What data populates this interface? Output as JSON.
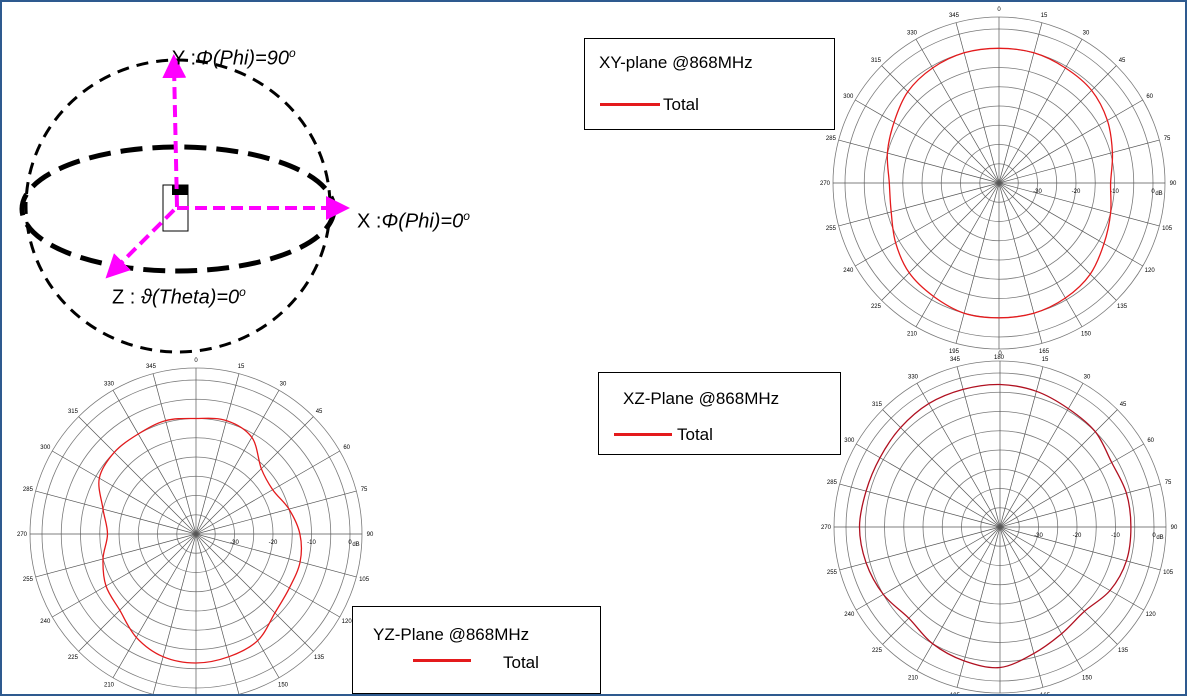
{
  "axes_diagram": {
    "y_prefix": "Y :",
    "y_text": "Φ(Phi)=90",
    "y_sup": "o",
    "x_prefix": "X :",
    "x_text": "Φ(Phi)=0",
    "x_sup": "o",
    "z_prefix": "Z : ",
    "z_text": "ϑ(Theta)=0",
    "z_sup": "o",
    "colors": {
      "axis_arrow": "#ff00ff",
      "ellipse": "#000000"
    }
  },
  "chart_data": [
    {
      "type": "polar",
      "legend_title": "XY-plane @868MHz",
      "series": [
        {
          "name": "Total",
          "color": "#e41a1c",
          "angles_deg": [
            0,
            15,
            30,
            45,
            60,
            75,
            90,
            105,
            120,
            135,
            150,
            165,
            180,
            195,
            210,
            225,
            240,
            255,
            270,
            285,
            300,
            315,
            330,
            345
          ],
          "values_db": [
            -5,
            -5,
            -5.5,
            -6,
            -7.5,
            -9.5,
            -11,
            -10,
            -8.5,
            -6.5,
            -5.5,
            -5,
            -5,
            -5,
            -6,
            -7,
            -9,
            -11,
            -11.5,
            -10,
            -8.5,
            -6.5,
            -5.5,
            -5
          ]
        }
      ],
      "angle_tick_labels": [
        "0",
        "15",
        "30",
        "45",
        "60",
        "75",
        "90",
        "105",
        "120",
        "135",
        "150",
        "165",
        "180",
        "195",
        "210",
        "225",
        "240",
        "255",
        "270",
        "285",
        "300",
        "315",
        "330",
        "345"
      ],
      "radial_tick_labels": [
        "-30",
        "-20",
        "-10",
        "0"
      ],
      "radial_unit": "dB",
      "r_range_db": [
        -40,
        0
      ]
    },
    {
      "type": "polar",
      "legend_title": "YZ-Plane @868MHz",
      "series": [
        {
          "name": "Total",
          "color": "#e41a1c",
          "angles_deg": [
            0,
            15,
            30,
            45,
            60,
            75,
            90,
            105,
            120,
            135,
            150,
            165,
            180,
            195,
            210,
            225,
            240,
            255,
            270,
            285,
            300,
            315,
            330,
            345
          ],
          "values_db": [
            -10,
            -9.5,
            -11,
            -16,
            -17,
            -15,
            -13,
            -12,
            -12,
            -11,
            -8,
            -7,
            -6.5,
            -7,
            -9,
            -12,
            -13,
            -15,
            -17,
            -15,
            -11,
            -10,
            -10,
            -9.5
          ]
        }
      ],
      "angle_tick_labels": [
        "0",
        "15",
        "30",
        "45",
        "60",
        "75",
        "90",
        "105",
        "120",
        "135",
        "150",
        "165",
        "180",
        "195",
        "210",
        "225",
        "240",
        "255",
        "270",
        "285",
        "300",
        "315",
        "330",
        "345"
      ],
      "radial_tick_labels": [
        "-30",
        "-20",
        "-10",
        "0"
      ],
      "radial_unit": "dB",
      "r_range_db": [
        -40,
        0
      ]
    },
    {
      "type": "polar",
      "legend_title": "XZ-Plane @868MHz",
      "series": [
        {
          "name": "Total",
          "color": "#b01020",
          "angles_deg": [
            0,
            15,
            30,
            45,
            60,
            75,
            90,
            105,
            120,
            135,
            150,
            165,
            180,
            195,
            210,
            225,
            240,
            255,
            270,
            285,
            300,
            315,
            330,
            345
          ],
          "values_db": [
            -3,
            -3.5,
            -4.5,
            -5,
            -6.5,
            -6,
            -6,
            -6,
            -7,
            -9,
            -8,
            -6,
            -3.5,
            -4,
            -5,
            -6.5,
            -5,
            -4,
            -3.5,
            -4,
            -4,
            -3.5,
            -3,
            -3
          ]
        }
      ],
      "angle_tick_labels": [
        "0",
        "15",
        "30",
        "45",
        "60",
        "75",
        "90",
        "105",
        "120",
        "135",
        "150",
        "165",
        "180",
        "195",
        "210",
        "225",
        "240",
        "255",
        "270",
        "285",
        "300",
        "315",
        "330",
        "345"
      ],
      "radial_tick_labels": [
        "-30",
        "-20",
        "-10",
        "0"
      ],
      "radial_unit": "dB",
      "r_range_db": [
        -40,
        0
      ]
    }
  ]
}
